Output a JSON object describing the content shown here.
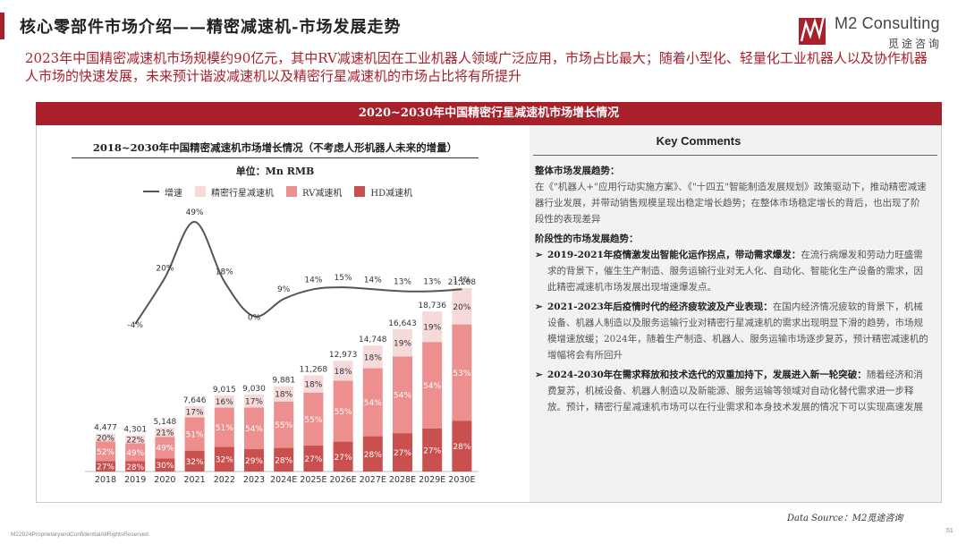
{
  "header": {
    "title": "核心零部件市场介绍——精密减速机-市场发展走势"
  },
  "logo": {
    "name": "M2 Consulting",
    "cn_name": "觅途咨询"
  },
  "intro": "2023年中国精密减速机市场规模约90亿元，其中RV减速机因在工业机器人领域广泛应用，市场占比最大；随着小型化、轻量化工业机器人以及协作机器人市场的快速发展，未来预计谐波减速机以及精密行星减速机的市场占比将有所提升",
  "panel_title": "2020~2030年中国精密行星减速机市场增长情况",
  "chart": {
    "title": "2018~2030年中国精密减速机市场增长情况（不考虑人形机器人未来的增量）",
    "unit": "单位：Mn RMB"
  },
  "legend": {
    "growth": "增速",
    "planetary": "精密行星减速机",
    "rv": "RV减速机",
    "hd": "HD减速机"
  },
  "colors": {
    "accent": "#a8202a",
    "planetary": "#f6dada",
    "rv": "#ee8f8f",
    "hd": "#c9504e",
    "growth_line": "#555555"
  },
  "chart_data": {
    "type": "bar",
    "stacked": true,
    "categories": [
      "2018",
      "2019",
      "2020",
      "2021",
      "2022",
      "2023",
      "2024E",
      "2025E",
      "2026E",
      "2027E",
      "2028E",
      "2029E",
      "2030E"
    ],
    "totals": [
      4477,
      4301,
      5148,
      7646,
      9015,
      9030,
      9881,
      11268,
      12973,
      14748,
      16643,
      18736,
      21268
    ],
    "total_labels": [
      "4,477",
      "4,301",
      "5,148",
      "7,646",
      "9,015",
      "9,030",
      "9,881",
      "11,268",
      "12,973",
      "14,748",
      "16,643",
      "18,736",
      "21,268"
    ],
    "series": [
      {
        "name": "HD减速机",
        "share_pct": [
          27,
          28,
          30,
          32,
          32,
          29,
          28,
          27,
          27,
          28,
          27,
          27,
          28
        ]
      },
      {
        "name": "RV减速机",
        "share_pct": [
          52,
          49,
          49,
          51,
          51,
          54,
          55,
          55,
          55,
          54,
          54,
          54,
          53
        ]
      },
      {
        "name": "精密行星减速机",
        "share_pct": [
          20,
          22,
          21,
          17,
          16,
          17,
          18,
          18,
          18,
          18,
          19,
          19,
          20
        ]
      }
    ],
    "growth": {
      "name": "增速",
      "values_pct": [
        -4,
        20,
        49,
        18,
        0,
        9,
        14,
        15,
        14,
        13,
        13,
        14
      ],
      "labels": [
        "-4%",
        "20%",
        "49%",
        "18%",
        "0%",
        "9%",
        "14%",
        "15%",
        "14%",
        "13%",
        "13%",
        "14%"
      ]
    },
    "ylim": [
      0,
      22000
    ],
    "growth_ylim": [
      -10,
      55
    ]
  },
  "comments": {
    "title": "Key Comments",
    "overall_head": "整体市场发展趋势：",
    "overall_text": "在《\"机器人+\"应用行动实施方案》、《\"十四五\"智能制造发展规划》政策驱动下，推动精密减速器行业发展，并带动销售规模呈现出稳定增长趋势；在整体市场稳定增长的背后，也出现了阶段性的表现差异",
    "stage_head": "阶段性的市场发展趋势：",
    "bullets": [
      {
        "head": "2019-2021年疫情激发出智能化运作拐点，带动需求爆发：",
        "text": "在流行病爆发和劳动力旺盛需求的背景下，催生生产制造、服务运输行业对无人化、自动化、智能化生产设备的需求，因此精密减速机市场发展出现增速爆发点。"
      },
      {
        "head": "2021-2023年后疫情时代的经济疲软波及产业表现：",
        "text": "在国内经济情况疲软的背景下，机械设备、机器人制造以及服务运输行业对精密行星减速机的需求出现明显下滑的趋势，市场规模增速放缓；2024年，随着生产制造、机器人、服务运输市场逐步复苏，预计精密减速机的增幅将会有所回升"
      },
      {
        "head": "2024-2030年在需求释放和技术迭代的双重加持下，发展进入新一轮突破：",
        "text": "随着经济和消费复苏，机械设备、机器人制造以及新能源、服务运输等领域对自动化替代需求进一步释放。预计，精密行星减速机市场可以在行业需求和本身技术发展的情况下可以实现高速发展"
      }
    ]
  },
  "data_source": "Data Source：M2觅途咨询",
  "footer": "M22024ProprietaryandConfidentialAllRightsReserved.",
  "page_number": "51"
}
